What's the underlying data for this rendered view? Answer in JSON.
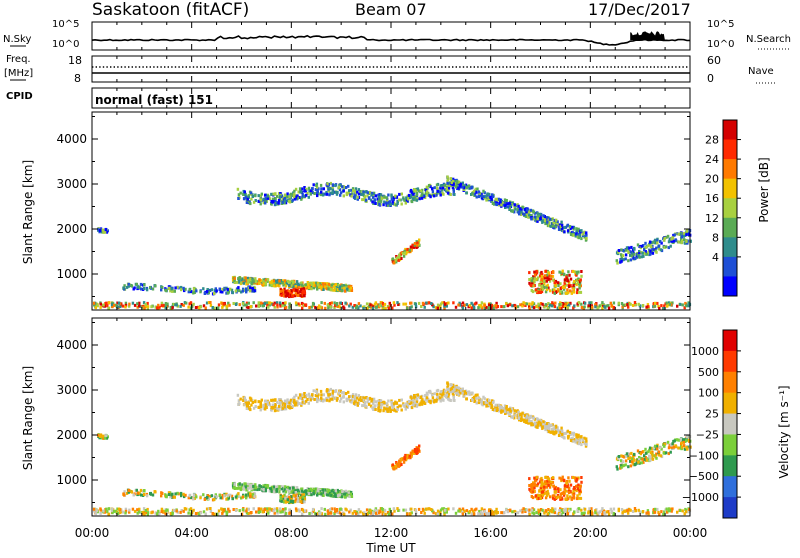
{
  "header": {
    "station": "Saskatoon (fitACF)",
    "beam": "Beam 07",
    "date": "17/Dec/2017"
  },
  "sky_panel": {
    "label": "N.Sky",
    "left_top": "10^5",
    "left_bottom": "10^0",
    "right_top": "10^5",
    "right_bottom": "10^0",
    "right_label": "N.Search"
  },
  "freq_panel": {
    "label_top": "Freq.",
    "label_bottom": "[MHz]",
    "left_top": "18",
    "left_bottom": "8",
    "right_top": "60",
    "right_bottom": "0",
    "right_label": "Nave"
  },
  "cpid_panel": {
    "label": "CPID",
    "text": "normal (fast) 151"
  },
  "x_axis": {
    "label": "Time UT",
    "ticks": [
      "00:00",
      "04:00",
      "08:00",
      "12:00",
      "16:00",
      "20:00",
      "00:00"
    ]
  },
  "chart_data": [
    {
      "type": "heatmap",
      "parameter": "power",
      "ylabel": "Slant Range [km]",
      "yticks": [
        1000,
        2000,
        3000,
        4000
      ],
      "ylim": [
        200,
        4600
      ],
      "xlim": [
        0,
        24
      ],
      "colorbar": {
        "label": "Power [dB]",
        "ticks": [
          "28",
          "24",
          "20",
          "16",
          "12",
          "8",
          "4"
        ],
        "colors": [
          "#0000ff",
          "#1e4fd6",
          "#2f8c8c",
          "#5aab55",
          "#a8d040",
          "#f2c200",
          "#ff7a00",
          "#ff2a00",
          "#d40000"
        ]
      }
    },
    {
      "type": "heatmap",
      "parameter": "velocity",
      "ylabel": "Slant Range [km]",
      "yticks": [
        1000,
        2000,
        3000,
        4000
      ],
      "ylim": [
        200,
        4600
      ],
      "xlim": [
        0,
        24
      ],
      "colorbar": {
        "label": "Velocity [m s⁻¹]",
        "ticks": [
          "1000",
          "500",
          "100",
          "25",
          "−25",
          "−100",
          "−500",
          "−1000"
        ],
        "colors": [
          "#1e3cc8",
          "#2f6fdc",
          "#2f9a4f",
          "#7bcf3a",
          "#c8c8c0",
          "#f0b000",
          "#ff8000",
          "#ff3a00",
          "#e00000"
        ]
      }
    }
  ]
}
